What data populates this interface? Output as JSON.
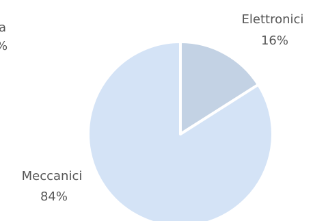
{
  "chart_data": {
    "type": "pie",
    "title": "",
    "slices": [
      {
        "label": "Elettronici",
        "value": 16,
        "value_text": "16%",
        "color": "#c3d2e4"
      },
      {
        "label": "Meccanici",
        "value": 84,
        "value_text": "84%",
        "color": "#d4e3f6"
      }
    ],
    "partial_label": {
      "line1": "a",
      "line2": "%"
    },
    "slice_border_color": "#ffffff"
  }
}
